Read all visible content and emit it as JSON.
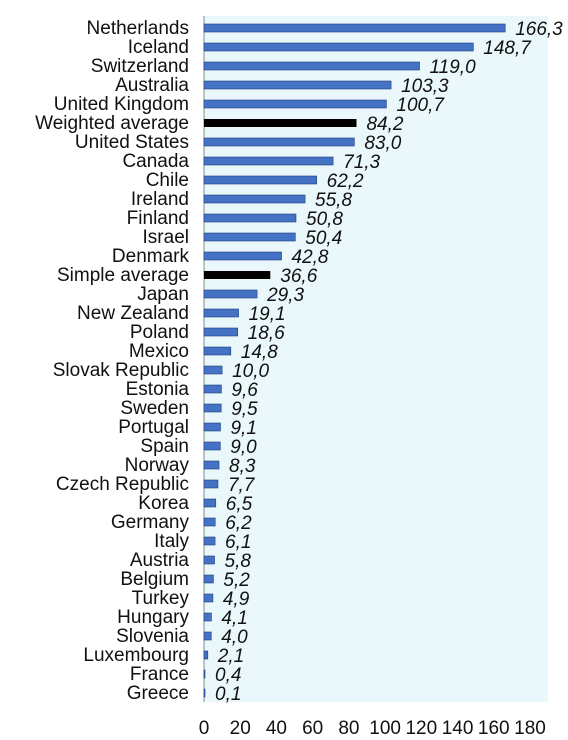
{
  "chart_data": {
    "type": "bar",
    "orientation": "horizontal",
    "categories": [
      "Netherlands",
      "Iceland",
      "Switzerland",
      "Australia",
      "United Kingdom",
      "Weighted average",
      "United States",
      "Canada",
      "Chile",
      "Ireland",
      "Finland",
      "Israel",
      "Denmark",
      "Simple average",
      "Japan",
      "New Zealand",
      "Poland",
      "Mexico",
      "Slovak Republic",
      "Estonia",
      "Sweden",
      "Portugal",
      "Spain",
      "Norway",
      "Czech Republic",
      "Korea",
      "Germany",
      "Italy",
      "Austria",
      "Belgium",
      "Turkey",
      "Hungary",
      "Slovenia",
      "Luxembourg",
      "France",
      "Greece"
    ],
    "values": [
      166.3,
      148.7,
      119.0,
      103.3,
      100.7,
      84.2,
      83.0,
      71.3,
      62.2,
      55.8,
      50.8,
      50.4,
      42.8,
      36.6,
      29.3,
      19.1,
      18.6,
      14.8,
      10.0,
      9.6,
      9.5,
      9.1,
      9.0,
      8.3,
      7.7,
      6.5,
      6.2,
      6.1,
      5.8,
      5.2,
      4.9,
      4.1,
      4.0,
      2.1,
      0.4,
      0.1
    ],
    "value_labels": [
      "166,3",
      "148,7",
      "119,0",
      "103,3",
      "100,7",
      "84,2",
      "83,0",
      "71,3",
      "62,2",
      "55,8",
      "50,8",
      "50,4",
      "42,8",
      "36,6",
      "29,3",
      "19,1",
      "18,6",
      "14,8",
      "10,0",
      "9,6",
      "9,5",
      "9,1",
      "9,0",
      "8,3",
      "7,7",
      "6,5",
      "6,2",
      "6,1",
      "5,8",
      "5,2",
      "4,9",
      "4,1",
      "4,0",
      "2,1",
      "0,4",
      "0,1"
    ],
    "highlighted": [
      "Weighted average",
      "Simple average"
    ],
    "colors": {
      "bar": "#4472c4",
      "bar_border": "#1f3f7a",
      "highlight": "#000000",
      "plot_background": "#eaf7fb",
      "value_text": "#111111"
    },
    "xlim": [
      0,
      180
    ],
    "xticks": [
      0,
      20,
      40,
      60,
      80,
      100,
      120,
      140,
      160,
      180
    ],
    "title": "",
    "xlabel": "",
    "ylabel": "",
    "grid": false,
    "legend": "none"
  }
}
